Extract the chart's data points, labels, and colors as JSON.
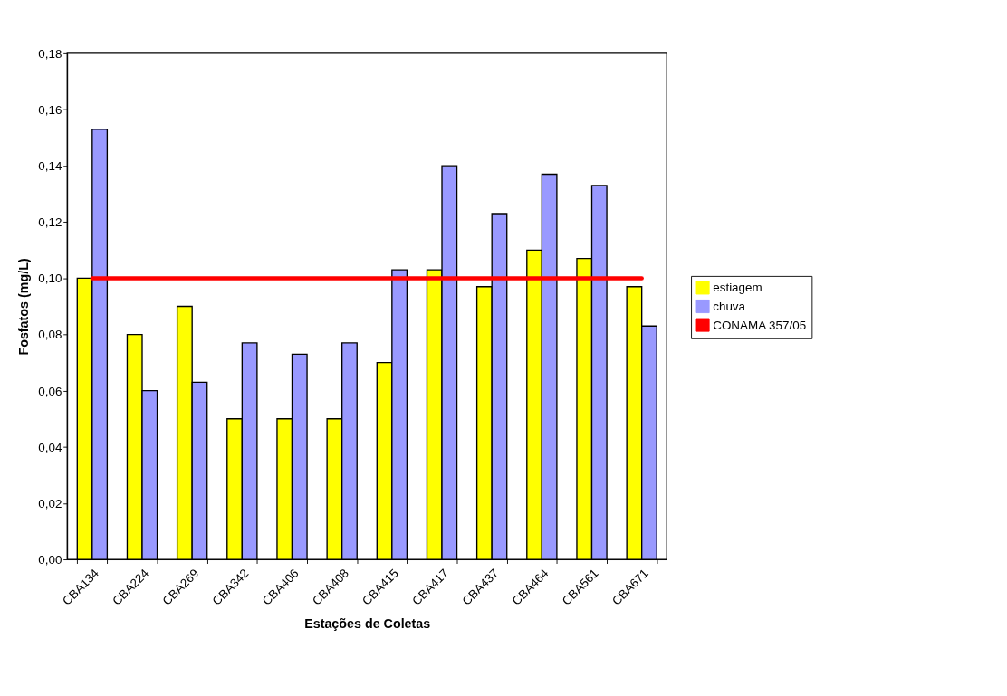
{
  "chart_data": {
    "type": "bar",
    "xlabel": "Estações de Coletas",
    "ylabel": "Fosfatos (mg/L)",
    "categories": [
      "CBA134",
      "CBA224",
      "CBA269",
      "CBA342",
      "CBA406",
      "CBA408",
      "CBA415",
      "CBA417",
      "CBA437",
      "CBA464",
      "CBA561",
      "CBA671"
    ],
    "series": [
      {
        "name": "estiagem",
        "color": "#ffff00",
        "values": [
          0.1,
          0.08,
          0.09,
          0.05,
          0.05,
          0.05,
          0.07,
          0.103,
          0.097,
          0.11,
          0.107,
          0.097
        ]
      },
      {
        "name": "chuva",
        "color": "#9999ff",
        "values": [
          0.153,
          0.06,
          0.063,
          0.077,
          0.073,
          0.077,
          0.103,
          0.14,
          0.123,
          0.137,
          0.133,
          0.083
        ]
      },
      {
        "name": "CONAMA 357/05",
        "type": "line",
        "color": "#ff0000",
        "values": [
          0.1,
          0.1,
          0.1,
          0.1,
          0.1,
          0.1,
          0.1,
          0.1,
          0.1,
          0.1,
          0.1,
          0.1
        ]
      }
    ],
    "ylim": [
      0,
      0.18
    ],
    "yticks": [
      {
        "value": 0,
        "label": "0,00"
      },
      {
        "value": 0.02,
        "label": "0,02"
      },
      {
        "value": 0.04,
        "label": "0,04"
      },
      {
        "value": 0.06,
        "label": "0,06"
      },
      {
        "value": 0.08,
        "label": "0,08"
      },
      {
        "value": 0.1,
        "label": "0,10"
      },
      {
        "value": 0.12,
        "label": "0,12"
      },
      {
        "value": 0.14,
        "label": "0,14"
      },
      {
        "value": 0.16,
        "label": "0,16"
      },
      {
        "value": 0.18,
        "label": "0,18"
      }
    ],
    "grid": false,
    "legend": "right"
  }
}
